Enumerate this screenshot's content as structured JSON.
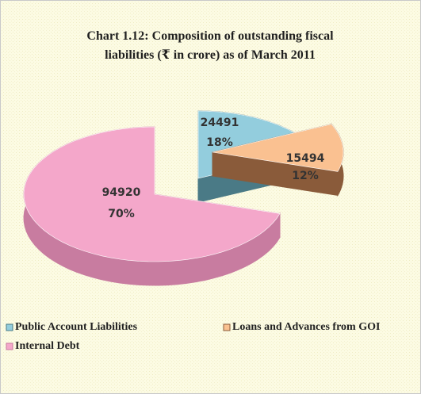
{
  "chart_data": {
    "type": "pie3d",
    "title": [
      "Chart 1.12: Composition of outstanding fiscal",
      "liabilities (₹ in crore) as of March 2011"
    ],
    "categories": [
      "Public Account Liabilities",
      "Loans and Advances from GOI",
      "Internal Debt"
    ],
    "values": [
      24491,
      15494,
      94920
    ],
    "percent_labels": [
      "18%",
      "12%",
      "70%"
    ],
    "colors": [
      "#93cddd",
      "#fac191",
      "#f4a7ca"
    ],
    "side_colors": [
      "#4a7a86",
      "#8a5b3a",
      "#c87ca0"
    ],
    "legend": "bottom"
  }
}
